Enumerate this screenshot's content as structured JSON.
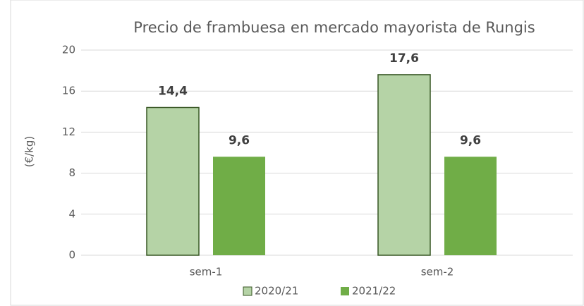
{
  "chart_data": {
    "type": "bar",
    "title": "Precio de frambuesa en mercado mayorista de Rungis",
    "y_label": "(€/kg)",
    "categories": [
      "sem-1",
      "sem-2"
    ],
    "series": [
      {
        "name": "2020/21",
        "color": "#b5d3a6",
        "edge": "#375623",
        "values": [
          14.4,
          17.6
        ],
        "value_labels": [
          "14,4",
          "17,6"
        ]
      },
      {
        "name": "2021/22",
        "color": "#70ad47",
        "values": [
          9.6,
          9.6
        ],
        "value_labels": [
          "9,6",
          "9,6"
        ]
      }
    ],
    "ylim": [
      0,
      20
    ],
    "yticks": [
      0,
      4,
      8,
      12,
      16,
      20
    ],
    "grid": true,
    "legend": "bottom"
  }
}
